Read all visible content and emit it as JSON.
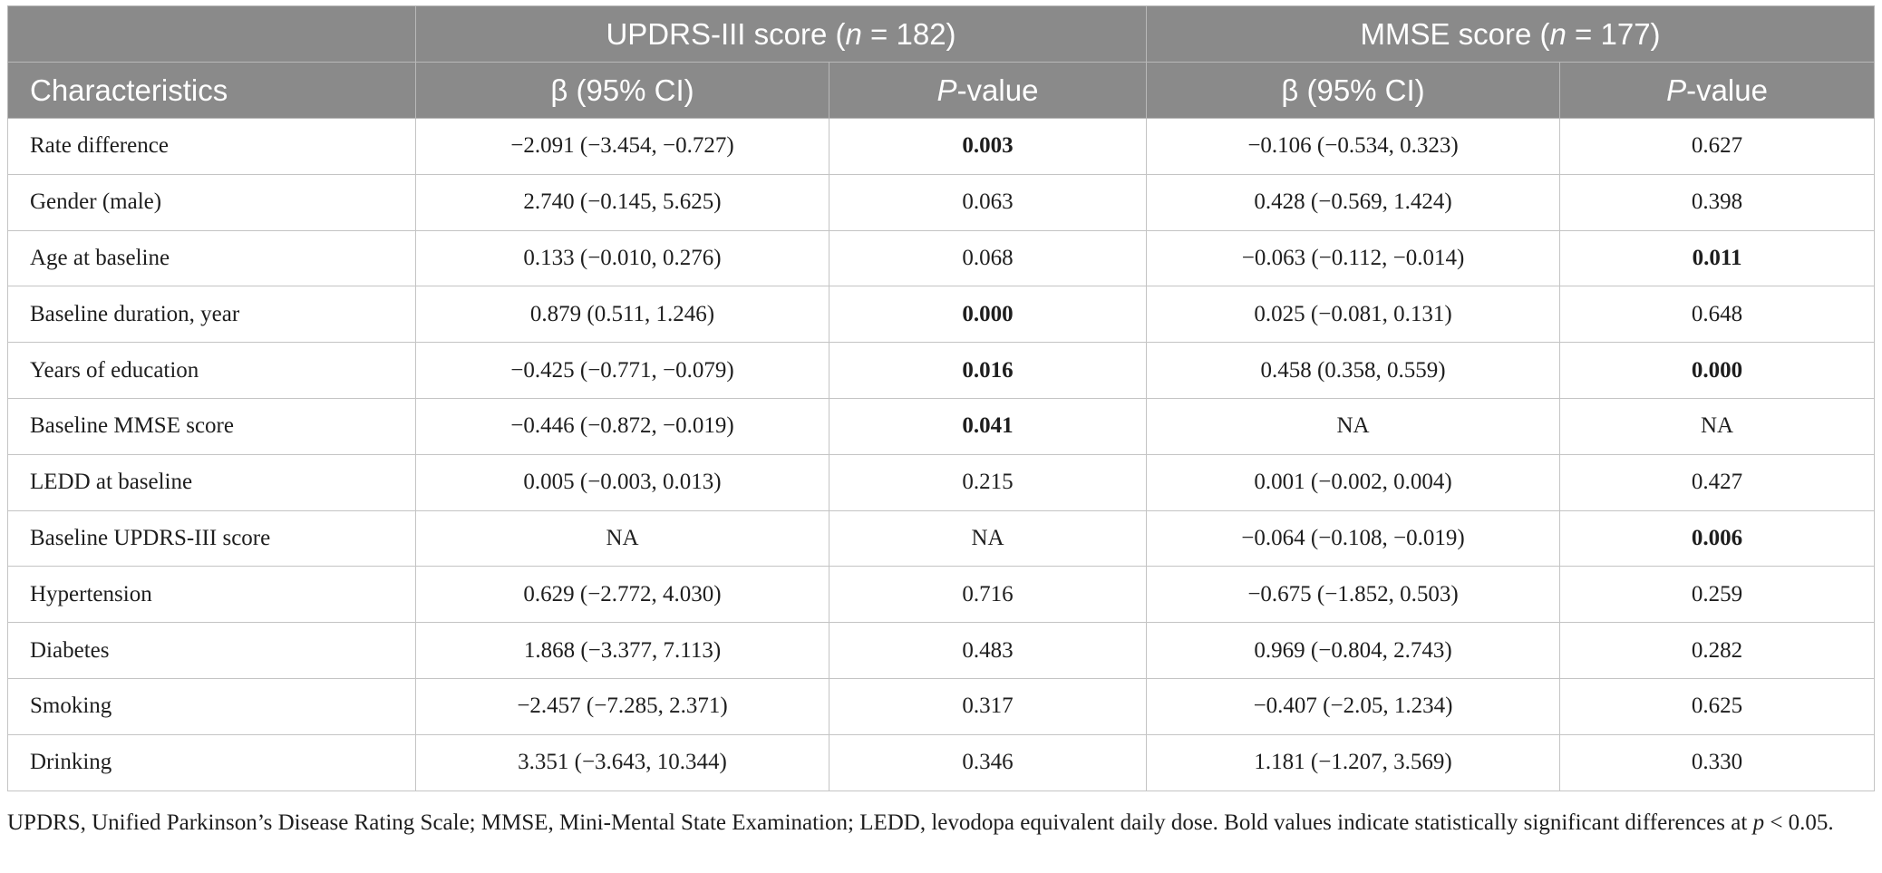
{
  "table": {
    "group_headers": {
      "updrs": {
        "prefix": "UPDRS-III score (",
        "n_symbol": "n",
        "suffix": " = 182)"
      },
      "mmse": {
        "prefix": "MMSE score (",
        "n_symbol": "n",
        "suffix": " = 177)"
      }
    },
    "column_headers": {
      "characteristics": "Characteristics",
      "beta_ci": "β (95% CI)",
      "p_symbol": "P",
      "p_suffix": "-value"
    },
    "rows": [
      {
        "label": "Rate difference",
        "updrs_beta": "−2.091 (−3.454, −0.727)",
        "updrs_p": "0.003",
        "updrs_p_bold": true,
        "mmse_beta": "−0.106 (−0.534, 0.323)",
        "mmse_p": "0.627",
        "mmse_p_bold": false
      },
      {
        "label": "Gender (male)",
        "updrs_beta": "2.740 (−0.145, 5.625)",
        "updrs_p": "0.063",
        "updrs_p_bold": false,
        "mmse_beta": "0.428 (−0.569, 1.424)",
        "mmse_p": "0.398",
        "mmse_p_bold": false
      },
      {
        "label": "Age at baseline",
        "updrs_beta": "0.133 (−0.010, 0.276)",
        "updrs_p": "0.068",
        "updrs_p_bold": false,
        "mmse_beta": "−0.063 (−0.112, −0.014)",
        "mmse_p": "0.011",
        "mmse_p_bold": true
      },
      {
        "label": "Baseline duration, year",
        "updrs_beta": "0.879 (0.511, 1.246)",
        "updrs_p": "0.000",
        "updrs_p_bold": true,
        "mmse_beta": "0.025 (−0.081, 0.131)",
        "mmse_p": "0.648",
        "mmse_p_bold": false
      },
      {
        "label": "Years of education",
        "updrs_beta": "−0.425 (−0.771, −0.079)",
        "updrs_p": "0.016",
        "updrs_p_bold": true,
        "mmse_beta": "0.458 (0.358, 0.559)",
        "mmse_p": "0.000",
        "mmse_p_bold": true
      },
      {
        "label": "Baseline MMSE score",
        "updrs_beta": "−0.446 (−0.872, −0.019)",
        "updrs_p": "0.041",
        "updrs_p_bold": true,
        "mmse_beta": "NA",
        "mmse_p": "NA",
        "mmse_p_bold": false
      },
      {
        "label": "LEDD at baseline",
        "updrs_beta": "0.005 (−0.003, 0.013)",
        "updrs_p": "0.215",
        "updrs_p_bold": false,
        "mmse_beta": "0.001 (−0.002, 0.004)",
        "mmse_p": "0.427",
        "mmse_p_bold": false
      },
      {
        "label": "Baseline UPDRS-III score",
        "updrs_beta": "NA",
        "updrs_p": "NA",
        "updrs_p_bold": false,
        "mmse_beta": "−0.064 (−0.108, −0.019)",
        "mmse_p": "0.006",
        "mmse_p_bold": true
      },
      {
        "label": "Hypertension",
        "updrs_beta": "0.629 (−2.772, 4.030)",
        "updrs_p": "0.716",
        "updrs_p_bold": false,
        "mmse_beta": "−0.675 (−1.852, 0.503)",
        "mmse_p": "0.259",
        "mmse_p_bold": false
      },
      {
        "label": "Diabetes",
        "updrs_beta": "1.868 (−3.377, 7.113)",
        "updrs_p": "0.483",
        "updrs_p_bold": false,
        "mmse_beta": "0.969 (−0.804, 2.743)",
        "mmse_p": "0.282",
        "mmse_p_bold": false
      },
      {
        "label": "Smoking",
        "updrs_beta": "−2.457 (−7.285, 2.371)",
        "updrs_p": "0.317",
        "updrs_p_bold": false,
        "mmse_beta": "−0.407 (−2.05, 1.234)",
        "mmse_p": "0.625",
        "mmse_p_bold": false
      },
      {
        "label": "Drinking",
        "updrs_beta": "3.351 (−3.643, 10.344)",
        "updrs_p": "0.346",
        "updrs_p_bold": false,
        "mmse_beta": "1.181 (−1.207, 3.569)",
        "mmse_p": "0.330",
        "mmse_p_bold": false
      }
    ]
  },
  "footnote": {
    "text": "UPDRS, Unified Parkinson’s Disease Rating Scale; MMSE, Mini-Mental State Examination; LEDD, levodopa equivalent daily dose. Bold values indicate statistically significant differences at ",
    "p_symbol": "p",
    "suffix": " < 0.05."
  },
  "colors": {
    "header_bg": "#8a8a8a",
    "header_text": "#ffffff",
    "grid": "#c4c4c4",
    "body_text": "#1e1e1e"
  }
}
